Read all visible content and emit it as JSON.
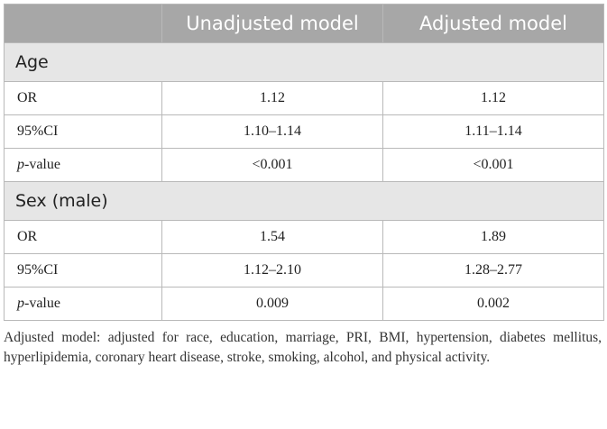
{
  "header": {
    "col0": "",
    "col1": "Unadjusted model",
    "col2": "Adjusted model"
  },
  "sections": [
    {
      "title": "Age",
      "rows": [
        {
          "label": "OR",
          "unadjusted": "1.12",
          "adjusted": "1.12"
        },
        {
          "label": "95%CI",
          "unadjusted": "1.10–1.14",
          "adjusted": "1.11–1.14"
        },
        {
          "label_italic": "p",
          "label": "-value",
          "unadjusted": "<0.001",
          "adjusted": "<0.001"
        }
      ]
    },
    {
      "title": "Sex (male)",
      "rows": [
        {
          "label": "OR",
          "unadjusted": "1.54",
          "adjusted": "1.89"
        },
        {
          "label": "95%CI",
          "unadjusted": "1.12–2.10",
          "adjusted": "1.28–2.77"
        },
        {
          "label_italic": "p",
          "label": "-value",
          "unadjusted": "0.009",
          "adjusted": "0.002"
        }
      ]
    }
  ],
  "footnote": "Adjusted model: adjusted for race, education, marriage, PRI, BMI, hypertension, diabetes mellitus, hyperlipidemia, coronary heart disease, stroke, smoking, alcohol, and physical activity."
}
